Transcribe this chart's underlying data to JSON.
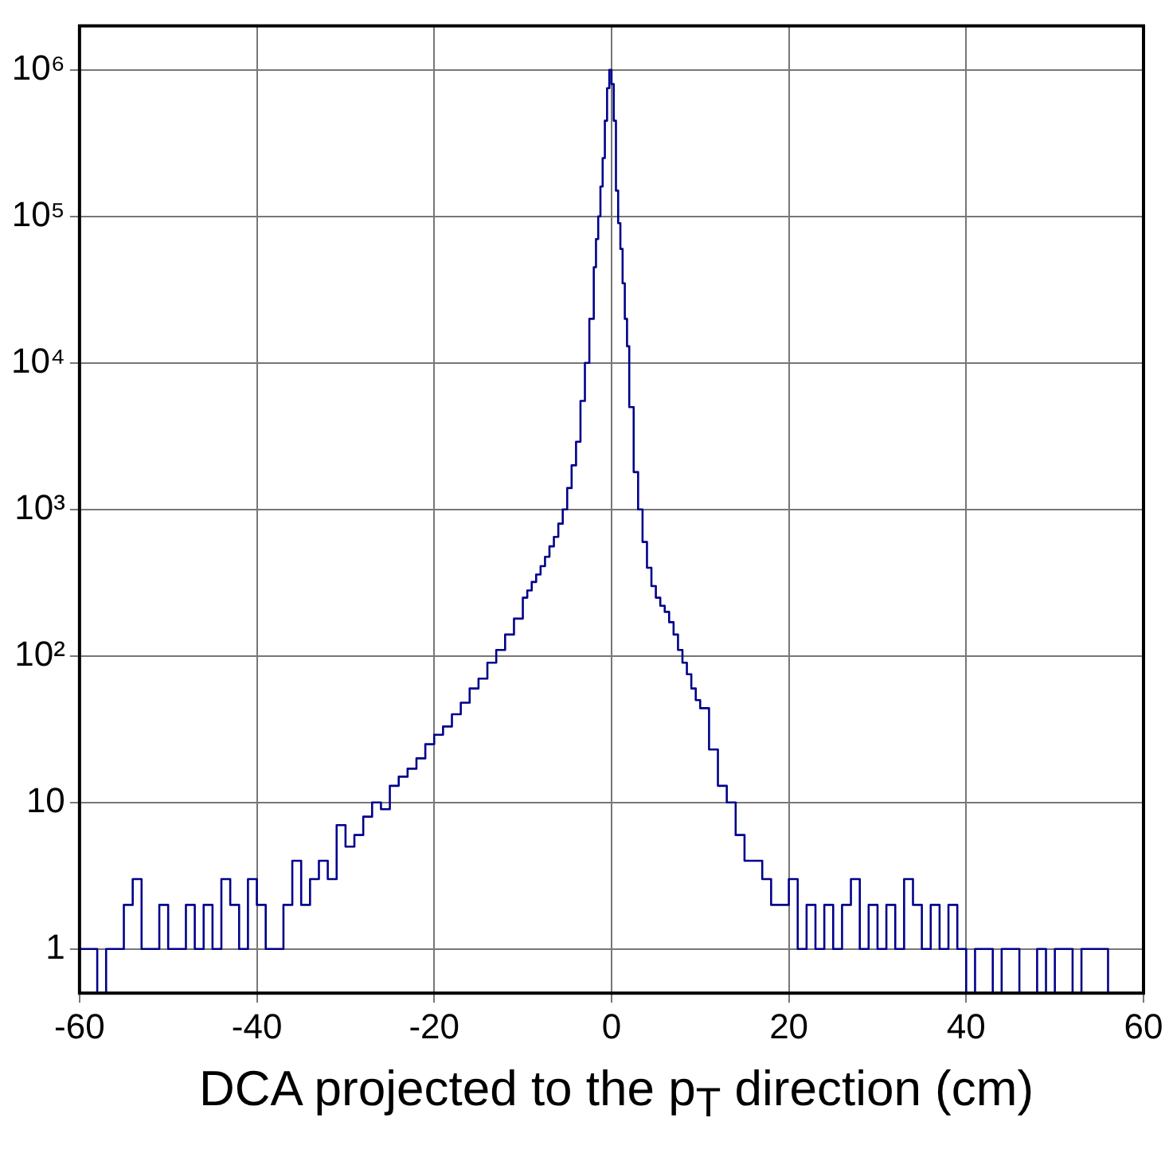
{
  "chart_data": {
    "type": "histogram",
    "xlabel": "DCA projected to the p$_{T}$ direction (cm)",
    "log": "y",
    "grid": true,
    "color": "#00008b",
    "bins": [
      -60,
      -59,
      -58,
      -57,
      -56,
      -55,
      -54,
      -53,
      -52,
      -51,
      -50,
      -49,
      -48,
      -47,
      -46,
      -45,
      -44,
      -43,
      -42,
      -41,
      -40,
      -39,
      -38,
      -37,
      -36,
      -35,
      -34,
      -33,
      -32,
      -31,
      -30,
      -29,
      -28,
      -27,
      -26,
      -25,
      -24,
      -23,
      -22,
      -21,
      -20,
      -19,
      -18,
      -17,
      -16,
      -15,
      -14,
      -13,
      -12,
      -11,
      -10,
      -9.5,
      -9,
      -8.5,
      -8,
      -7.5,
      -7,
      -6.5,
      -6,
      -5.5,
      -5,
      -4.5,
      -4,
      -3.5,
      -3,
      -2.5,
      -2,
      -1.75,
      -1.5,
      -1.25,
      -1,
      -0.75,
      -0.5,
      -0.25,
      0,
      0.25,
      0.5,
      0.75,
      1,
      1.25,
      1.5,
      1.75,
      2,
      2.5,
      3,
      3.5,
      4,
      4.5,
      5,
      5.5,
      6,
      6.5,
      7,
      7.5,
      8,
      8.5,
      9,
      9.5,
      10,
      11,
      12,
      13,
      14,
      15,
      16,
      17,
      18,
      19,
      20,
      21,
      22,
      23,
      24,
      25,
      26,
      27,
      28,
      29,
      30,
      31,
      32,
      33,
      34,
      35,
      36,
      37,
      38,
      39,
      40,
      41,
      42,
      43,
      44,
      45,
      46,
      47,
      48,
      49,
      50,
      51,
      52,
      53,
      54,
      55,
      56,
      57,
      58,
      59,
      60
    ],
    "values": [
      1,
      1,
      null,
      1,
      1,
      2,
      3,
      1,
      1,
      2,
      1,
      1,
      2,
      1,
      2,
      1,
      3,
      2,
      1,
      3,
      2,
      1,
      1,
      2,
      4,
      2,
      3,
      4,
      3,
      7,
      5,
      6,
      8,
      10,
      9,
      13,
      15,
      17,
      20,
      25,
      29,
      33,
      40,
      48,
      60,
      70,
      90,
      110,
      140,
      180,
      250,
      280,
      320,
      360,
      410,
      475,
      560,
      650,
      800,
      1000,
      1400,
      2000,
      2900,
      5500,
      10000,
      20000,
      45000,
      70000,
      100000,
      160000,
      250000,
      450000,
      750000,
      1000000,
      800000,
      450000,
      150000,
      90000,
      60000,
      35000,
      20000,
      13000,
      5000,
      1800,
      1000,
      600,
      400,
      300,
      250,
      220,
      200,
      170,
      140,
      110,
      90,
      75,
      60,
      50,
      44,
      23,
      13,
      10,
      6,
      4,
      4,
      3,
      2,
      2,
      3,
      1,
      2,
      1,
      2,
      1,
      2,
      3,
      1,
      2,
      1,
      2,
      1,
      3,
      2,
      1,
      2,
      1,
      2,
      1,
      null,
      1,
      1,
      null,
      1,
      1,
      null,
      null,
      1,
      null,
      1,
      1,
      null,
      1,
      1,
      1,
      null,
      null,
      null,
      null
    ],
    "xlim": [
      -60,
      60
    ],
    "xticks": [
      -60,
      -40,
      -20,
      0,
      20,
      40,
      60
    ],
    "ylim": [
      0.5,
      2000000
    ],
    "yticks": [
      1,
      10,
      {
        "value": 100,
        "label": "10²"
      },
      {
        "value": 1000,
        "label": "10³"
      },
      {
        "value": 10000,
        "label": "10⁴"
      },
      {
        "value": 100000,
        "label": "10⁵"
      },
      {
        "value": 1000000,
        "label": "10⁶"
      }
    ]
  }
}
